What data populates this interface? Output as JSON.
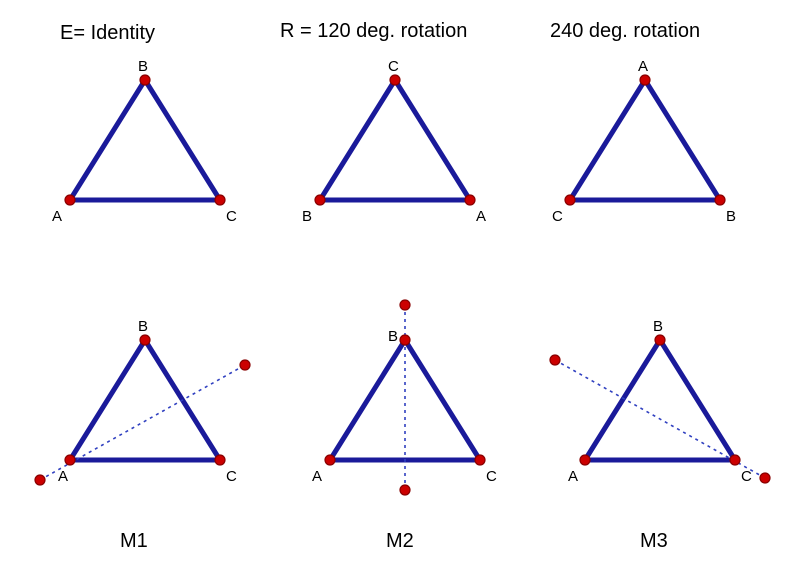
{
  "colors": {
    "edge": "#1a1a9a",
    "vertex_fill": "#cc0000",
    "vertex_stroke": "#880000",
    "axis": "#3040c0",
    "text": "#000000",
    "background": "#ffffff"
  },
  "title_fontsize": 20,
  "label_fontsize": 15,
  "caption_fontsize": 20,
  "titles": {
    "t1": "E= Identity",
    "t2": "R = 120 deg. rotation",
    "t3": "240 deg. rotation"
  },
  "captions": {
    "m1": "M1",
    "m2": "M2",
    "m3": "M3"
  },
  "vertex_radius": 5,
  "stroke_width": 5,
  "vertex_labels": {
    "E": {
      "top": "B",
      "left": "A",
      "right": "C"
    },
    "R1": {
      "top": "C",
      "left": "B",
      "right": "A"
    },
    "R2": {
      "top": "A",
      "left": "C",
      "right": "B"
    },
    "M1": {
      "top": "B",
      "left": "A",
      "right": "C"
    },
    "M2": {
      "top": "B",
      "left": "A",
      "right": "C"
    },
    "M3": {
      "top": "B",
      "left": "A",
      "right": "C"
    }
  }
}
